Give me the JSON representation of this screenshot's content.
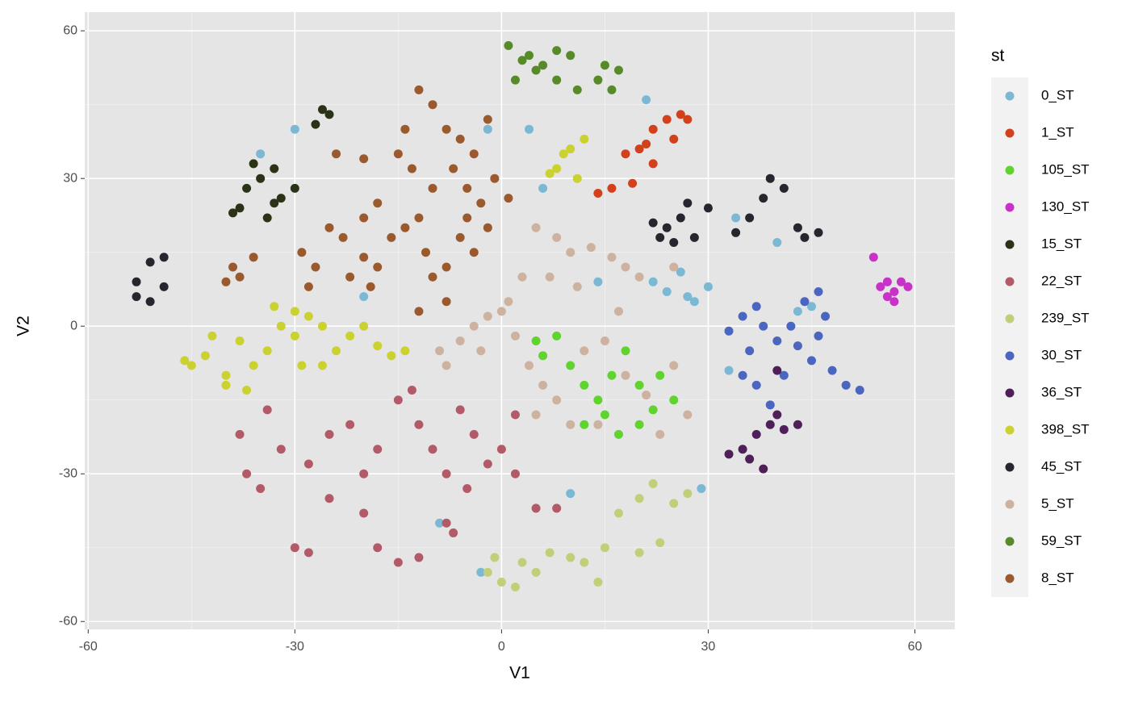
{
  "chart_data": {
    "type": "scatter",
    "x_label": "V1",
    "y_label": "V2",
    "legend_title": "st",
    "xlim": [
      -60.5,
      65.8
    ],
    "ylim": [
      -61.6,
      63.8
    ],
    "xticks": [
      -60,
      -30,
      0,
      30,
      60
    ],
    "yticks": [
      -60,
      -30,
      0,
      30,
      60
    ],
    "grid": true,
    "legend_position": "right",
    "series": [
      {
        "name": "0_ST",
        "color": "#7ab8d4",
        "x": [
          24,
          27,
          30,
          28,
          22,
          -30,
          -35,
          4,
          6,
          -2,
          21,
          43,
          45,
          33,
          10,
          -3,
          26,
          14,
          -9,
          29,
          34,
          40,
          -20
        ],
        "y": [
          7,
          6,
          8,
          5,
          9,
          40,
          35,
          40,
          28,
          40,
          46,
          3,
          4,
          -9,
          -34,
          -50,
          11,
          9,
          -40,
          -33,
          22,
          17,
          6
        ]
      },
      {
        "name": "1_ST",
        "color": "#d2401c",
        "x": [
          22,
          20,
          24,
          27,
          18,
          22,
          25,
          16,
          19,
          14,
          26,
          21
        ],
        "y": [
          40,
          36,
          42,
          42,
          35,
          33,
          38,
          28,
          29,
          27,
          43,
          37
        ]
      },
      {
        "name": "105_ST",
        "color": "#5fd42f",
        "x": [
          5,
          8,
          10,
          12,
          15,
          17,
          20,
          22,
          23,
          18,
          14,
          16,
          12,
          20,
          25,
          6
        ],
        "y": [
          -3,
          -2,
          -8,
          -12,
          -18,
          -22,
          -20,
          -17,
          -10,
          -5,
          -15,
          -10,
          -20,
          -12,
          -15,
          -6
        ]
      },
      {
        "name": "130_ST",
        "color": "#c832c8",
        "x": [
          55,
          57,
          58,
          56,
          54,
          57,
          59,
          56
        ],
        "y": [
          8,
          7,
          9,
          6,
          14,
          5,
          8,
          9
        ]
      },
      {
        "name": "15_ST",
        "color": "#2b3316",
        "x": [
          -35,
          -37,
          -33,
          -32,
          -38,
          -34,
          -30,
          -36,
          -26,
          -25,
          -27,
          -33,
          -39
        ],
        "y": [
          30,
          28,
          32,
          26,
          24,
          22,
          28,
          33,
          44,
          43,
          41,
          25,
          23
        ]
      },
      {
        "name": "22_ST",
        "color": "#b35a69",
        "x": [
          -38,
          -37,
          -35,
          -32,
          -28,
          -25,
          -22,
          -20,
          -18,
          -15,
          -12,
          -10,
          -8,
          -6,
          -4,
          -2,
          0,
          2,
          -5,
          -30,
          -28,
          -18,
          -15,
          -12,
          -8,
          -7,
          5,
          8,
          -34,
          -13,
          -25,
          -20,
          2
        ],
        "y": [
          -22,
          -30,
          -33,
          -25,
          -28,
          -22,
          -20,
          -30,
          -25,
          -15,
          -20,
          -25,
          -30,
          -17,
          -22,
          -28,
          -25,
          -30,
          -33,
          -45,
          -46,
          -45,
          -48,
          -47,
          -40,
          -42,
          -37,
          -37,
          -17,
          -13,
          -35,
          -38,
          -18
        ]
      },
      {
        "name": "239_ST",
        "color": "#c2cf78",
        "x": [
          -2,
          0,
          3,
          5,
          7,
          10,
          14,
          15,
          20,
          23,
          17,
          20,
          22,
          25,
          27,
          2,
          12,
          -1
        ],
        "y": [
          -50,
          -52,
          -48,
          -50,
          -46,
          -47,
          -52,
          -45,
          -46,
          -44,
          -38,
          -35,
          -32,
          -36,
          -34,
          -53,
          -48,
          -47
        ]
      },
      {
        "name": "30_ST",
        "color": "#4b66c0",
        "x": [
          33,
          35,
          37,
          38,
          36,
          35,
          40,
          42,
          44,
          46,
          47,
          43,
          45,
          48,
          50,
          52,
          41,
          39,
          37,
          46
        ],
        "y": [
          -1,
          2,
          4,
          0,
          -5,
          -10,
          -3,
          0,
          5,
          7,
          2,
          -4,
          -7,
          -9,
          -12,
          -13,
          -10,
          -16,
          -12,
          -2
        ]
      },
      {
        "name": "36_ST",
        "color": "#4f1f5a",
        "x": [
          33,
          36,
          38,
          37,
          39,
          40,
          41,
          43,
          35,
          40
        ],
        "y": [
          -26,
          -27,
          -29,
          -22,
          -20,
          -18,
          -21,
          -20,
          -25,
          -9
        ]
      },
      {
        "name": "398_ST",
        "color": "#cbd12e",
        "x": [
          -43,
          -45,
          -40,
          -38,
          -36,
          -42,
          -34,
          -32,
          -30,
          -28,
          -26,
          -24,
          -22,
          -20,
          -18,
          -16,
          -14,
          -33,
          -30,
          -40,
          -46,
          -37,
          9,
          8,
          10,
          11,
          7,
          12,
          -29,
          -26
        ],
        "y": [
          -6,
          -8,
          -10,
          -3,
          -8,
          -2,
          -5,
          0,
          -2,
          2,
          -8,
          -5,
          -2,
          0,
          -4,
          -6,
          -5,
          4,
          3,
          -12,
          -7,
          -13,
          35,
          32,
          36,
          30,
          31,
          38,
          -8,
          0
        ]
      },
      {
        "name": "45_ST",
        "color": "#27252e",
        "x": [
          -53,
          -51,
          -49,
          -51,
          -49,
          -53,
          22,
          24,
          26,
          28,
          25,
          27,
          30,
          34,
          36,
          38,
          39,
          41,
          43,
          44,
          46,
          23
        ],
        "y": [
          6,
          5,
          8,
          13,
          14,
          9,
          21,
          20,
          22,
          18,
          17,
          25,
          24,
          19,
          22,
          26,
          30,
          28,
          20,
          18,
          19,
          18
        ]
      },
      {
        "name": "5_ST",
        "color": "#ceb2a0",
        "x": [
          5,
          8,
          10,
          13,
          16,
          18,
          3,
          1,
          -2,
          -4,
          -6,
          -9,
          -8,
          -3,
          2,
          4,
          6,
          8,
          12,
          15,
          18,
          21,
          25,
          27,
          23,
          10,
          5,
          14,
          0,
          11,
          20,
          25,
          7,
          17
        ],
        "y": [
          20,
          18,
          15,
          16,
          14,
          12,
          10,
          5,
          2,
          0,
          -3,
          -5,
          -8,
          -5,
          -2,
          -8,
          -12,
          -15,
          -5,
          -3,
          -10,
          -14,
          -8,
          -18,
          -22,
          -20,
          -18,
          -20,
          3,
          8,
          10,
          12,
          10,
          3
        ]
      },
      {
        "name": "59_ST",
        "color": "#578a28",
        "x": [
          1,
          3,
          5,
          2,
          8,
          10,
          8,
          11,
          15,
          17,
          14,
          6,
          4,
          16
        ],
        "y": [
          57,
          54,
          52,
          50,
          56,
          55,
          50,
          48,
          53,
          52,
          50,
          53,
          55,
          48
        ]
      },
      {
        "name": "8_ST",
        "color": "#9b5a2d",
        "x": [
          -39,
          -38,
          -36,
          -40,
          -29,
          -27,
          -25,
          -28,
          -22,
          -20,
          -18,
          -19,
          -23,
          -16,
          -14,
          -11,
          -10,
          -8,
          -12,
          -8,
          -5,
          -3,
          -6,
          -4,
          -2,
          -14,
          -12,
          -10,
          -8,
          -6,
          -4,
          -2,
          -1,
          -10,
          -7,
          -13,
          -15,
          -5,
          1,
          -18,
          -20,
          -24,
          -20,
          -12
        ],
        "y": [
          12,
          10,
          14,
          9,
          15,
          12,
          20,
          8,
          10,
          14,
          12,
          8,
          18,
          18,
          20,
          15,
          10,
          5,
          3,
          12,
          22,
          25,
          18,
          15,
          20,
          40,
          48,
          45,
          40,
          38,
          35,
          42,
          30,
          28,
          32,
          32,
          35,
          28,
          26,
          25,
          22,
          35,
          34,
          22
        ]
      }
    ]
  }
}
